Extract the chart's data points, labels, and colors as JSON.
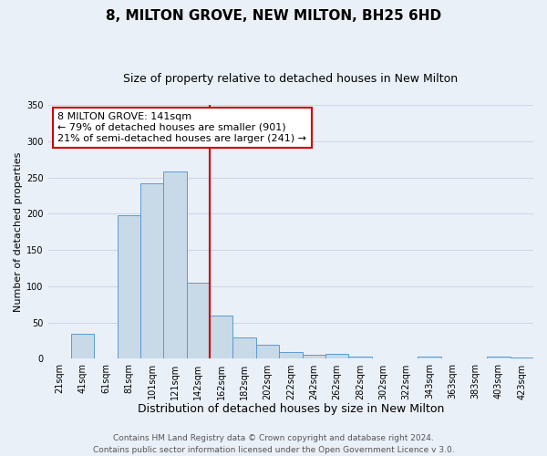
{
  "title": "8, MILTON GROVE, NEW MILTON, BH25 6HD",
  "subtitle": "Size of property relative to detached houses in New Milton",
  "xlabel": "Distribution of detached houses by size in New Milton",
  "ylabel": "Number of detached properties",
  "bar_labels": [
    "21sqm",
    "41sqm",
    "61sqm",
    "81sqm",
    "101sqm",
    "121sqm",
    "142sqm",
    "162sqm",
    "182sqm",
    "202sqm",
    "222sqm",
    "242sqm",
    "262sqm",
    "282sqm",
    "302sqm",
    "322sqm",
    "343sqm",
    "363sqm",
    "383sqm",
    "403sqm",
    "423sqm"
  ],
  "bar_values": [
    0,
    35,
    0,
    198,
    242,
    258,
    105,
    60,
    30,
    20,
    10,
    5,
    7,
    3,
    0,
    0,
    3,
    1,
    0,
    3,
    2
  ],
  "bar_color": "#c8d9e8",
  "bar_edge_color": "#5b9bd5",
  "red_line_index": 6,
  "ylim": [
    0,
    350
  ],
  "yticks": [
    0,
    50,
    100,
    150,
    200,
    250,
    300,
    350
  ],
  "annotation_title": "8 MILTON GROVE: 141sqm",
  "annotation_line1": "← 79% of detached houses are smaller (901)",
  "annotation_line2": "21% of semi-detached houses are larger (241) →",
  "annotation_box_color": "#ffffff",
  "annotation_box_edge_color": "#cc0000",
  "red_line_color": "#cc0000",
  "grid_color": "#d0d8e8",
  "background_color": "#eaf0f8",
  "footer_line1": "Contains HM Land Registry data © Crown copyright and database right 2024.",
  "footer_line2": "Contains public sector information licensed under the Open Government Licence v 3.0.",
  "title_fontsize": 11,
  "subtitle_fontsize": 9,
  "xlabel_fontsize": 9,
  "ylabel_fontsize": 8,
  "tick_fontsize": 7,
  "annotation_fontsize": 8,
  "footer_fontsize": 6.5
}
